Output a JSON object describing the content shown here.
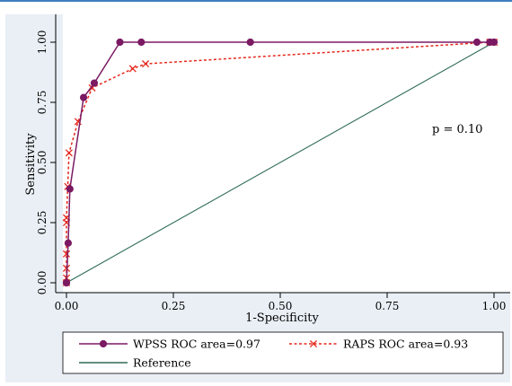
{
  "chart_data": {
    "type": "line",
    "xlabel": "1-Specificity",
    "ylabel": "Sensitivity",
    "xlim": [
      0,
      1
    ],
    "ylim": [
      0,
      1
    ],
    "x_ticks": [
      "0.00",
      "0.25",
      "0.50",
      "0.75",
      "1.00"
    ],
    "y_ticks": [
      "0.00",
      "0.25",
      "0.50",
      "0.75",
      "1.00"
    ],
    "grid": false,
    "annotation": "p = 0.10",
    "legend_position": "bottom",
    "series": [
      {
        "name": "WPSS ROC area=0.97",
        "color": "#7b1a63",
        "line_style": "solid",
        "marker": "circle",
        "x": [
          0,
          0,
          0.004,
          0.008,
          0.04,
          0.065,
          0.125,
          0.175,
          0.43,
          0.96,
          0.99,
          1.0
        ],
        "y": [
          0,
          0,
          0.165,
          0.39,
          0.77,
          0.83,
          1.0,
          1.0,
          1.0,
          1.0,
          1.0,
          1.0
        ]
      },
      {
        "name": "RAPS ROC area=0.93",
        "color": "#e5271c",
        "line_style": "dashed",
        "marker": "x",
        "x": [
          0,
          0,
          0,
          0,
          0,
          0,
          0.003,
          0.006,
          0.027,
          0.06,
          0.155,
          0.185,
          0.99,
          1.0,
          1.0
        ],
        "y": [
          0,
          0.02,
          0.06,
          0.12,
          0.25,
          0.27,
          0.4,
          0.54,
          0.67,
          0.81,
          0.89,
          0.91,
          1.0,
          1.0,
          1.0
        ]
      },
      {
        "name": "Reference",
        "color": "#2e6b58",
        "line_style": "solid",
        "marker": "none",
        "x": [
          0,
          1
        ],
        "y": [
          0,
          1
        ]
      }
    ]
  }
}
